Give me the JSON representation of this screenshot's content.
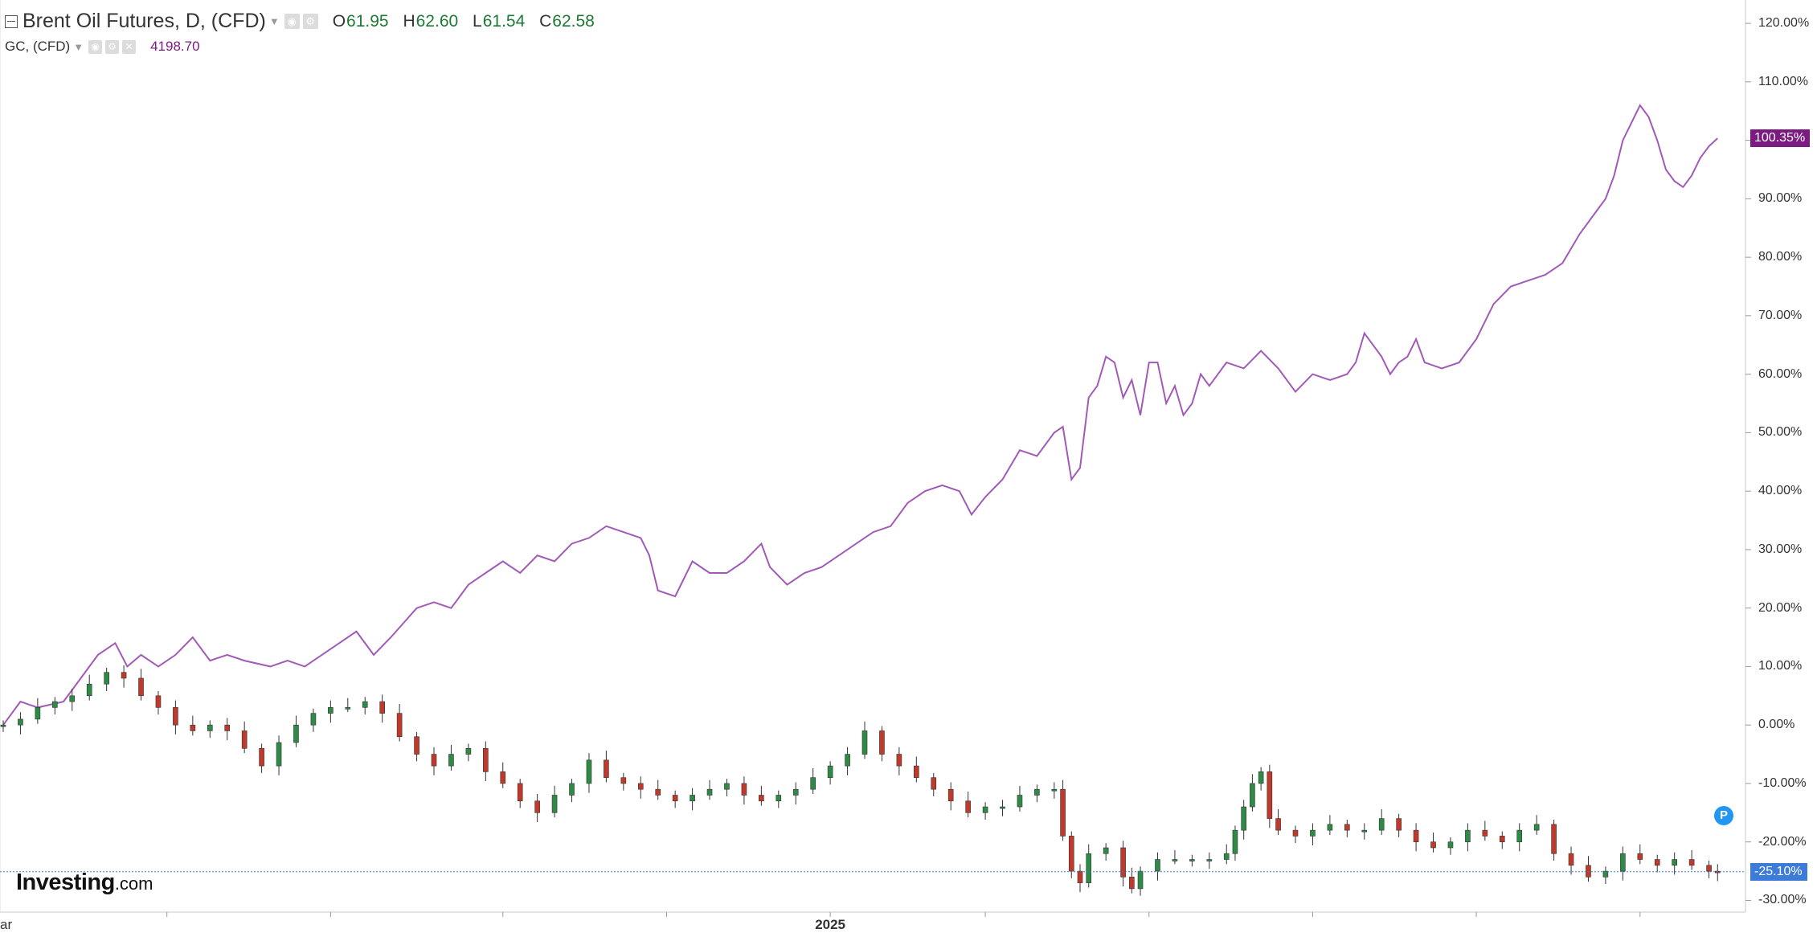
{
  "legend": {
    "main": {
      "title": "Brent Oil Futures, D, (CFD)",
      "ohlc": [
        {
          "label": "O",
          "value": "61.95"
        },
        {
          "label": "H",
          "value": "62.60"
        },
        {
          "label": "L",
          "value": "61.54"
        },
        {
          "label": "C",
          "value": "62.58"
        }
      ]
    },
    "secondary": {
      "title": "GC, (CFD)",
      "value": "4198.70"
    }
  },
  "branding": {
    "logo": "Investing",
    "logo_suffix": ".com"
  },
  "marker": {
    "label": "P"
  },
  "colors": {
    "gold_line": "#a15ab6",
    "gold_badge": "#7b1b82",
    "bull": "#2e8b45",
    "bear": "#c0392b",
    "last_price": "#3d7bd9",
    "marker": "#2196f3",
    "ohlc_value": "#1c7a33",
    "grid": "#e8e8e8"
  },
  "icons": [
    "collapse-icon",
    "caret-down-icon",
    "eye-icon",
    "gear-icon",
    "close-icon"
  ],
  "chart_data": {
    "type": "line",
    "title": "Brent Oil Futures, D, (CFD)",
    "y_axis": {
      "unit": "percent change",
      "ticks": [
        "120.00%",
        "110.00%",
        "100.00%",
        "90.00%",
        "80.00%",
        "70.00%",
        "60.00%",
        "50.00%",
        "40.00%",
        "30.00%",
        "20.00%",
        "10.00%",
        "0.00%",
        "-10.00%",
        "-20.00%",
        "-30.00%"
      ],
      "tick_values": [
        120,
        110,
        100,
        90,
        80,
        70,
        60,
        50,
        40,
        30,
        20,
        10,
        0,
        -10,
        -20,
        -30
      ],
      "range": [
        -32,
        124
      ]
    },
    "x_axis": {
      "labels": [
        {
          "text": "ar",
          "t": 0
        },
        {
          "text": "2025",
          "t": 0.48
        }
      ],
      "tick_marks": [
        0.095,
        0.19,
        0.29,
        0.385,
        0.48,
        0.57,
        0.665,
        0.76,
        0.855,
        0.95
      ],
      "range": [
        0,
        1
      ]
    },
    "series": [
      {
        "name": "GC, (CFD)",
        "style": "line",
        "last_label": "100.35%",
        "points": [
          [
            0.0,
            0
          ],
          [
            0.01,
            4
          ],
          [
            0.02,
            3
          ],
          [
            0.035,
            4
          ],
          [
            0.045,
            8
          ],
          [
            0.055,
            12
          ],
          [
            0.065,
            14
          ],
          [
            0.072,
            10
          ],
          [
            0.08,
            12
          ],
          [
            0.09,
            10
          ],
          [
            0.1,
            12
          ],
          [
            0.11,
            15
          ],
          [
            0.12,
            11
          ],
          [
            0.13,
            12
          ],
          [
            0.14,
            11
          ],
          [
            0.155,
            10
          ],
          [
            0.165,
            11
          ],
          [
            0.175,
            10
          ],
          [
            0.185,
            12
          ],
          [
            0.195,
            14
          ],
          [
            0.205,
            16
          ],
          [
            0.215,
            12
          ],
          [
            0.225,
            15
          ],
          [
            0.24,
            20
          ],
          [
            0.25,
            21
          ],
          [
            0.26,
            20
          ],
          [
            0.27,
            24
          ],
          [
            0.28,
            26
          ],
          [
            0.29,
            28
          ],
          [
            0.3,
            26
          ],
          [
            0.31,
            29
          ],
          [
            0.32,
            28
          ],
          [
            0.33,
            31
          ],
          [
            0.34,
            32
          ],
          [
            0.35,
            34
          ],
          [
            0.36,
            33
          ],
          [
            0.37,
            32
          ],
          [
            0.375,
            29
          ],
          [
            0.38,
            23
          ],
          [
            0.39,
            22
          ],
          [
            0.4,
            28
          ],
          [
            0.41,
            26
          ],
          [
            0.42,
            26
          ],
          [
            0.43,
            28
          ],
          [
            0.44,
            31
          ],
          [
            0.445,
            27
          ],
          [
            0.455,
            24
          ],
          [
            0.465,
            26
          ],
          [
            0.475,
            27
          ],
          [
            0.485,
            29
          ],
          [
            0.495,
            31
          ],
          [
            0.505,
            33
          ],
          [
            0.515,
            34
          ],
          [
            0.525,
            38
          ],
          [
            0.535,
            40
          ],
          [
            0.545,
            41
          ],
          [
            0.555,
            40
          ],
          [
            0.562,
            36
          ],
          [
            0.57,
            39
          ],
          [
            0.58,
            42
          ],
          [
            0.59,
            47
          ],
          [
            0.6,
            46
          ],
          [
            0.61,
            50
          ],
          [
            0.615,
            51
          ],
          [
            0.62,
            42
          ],
          [
            0.625,
            44
          ],
          [
            0.63,
            56
          ],
          [
            0.635,
            58
          ],
          [
            0.64,
            63
          ],
          [
            0.645,
            62
          ],
          [
            0.65,
            56
          ],
          [
            0.655,
            59
          ],
          [
            0.66,
            53
          ],
          [
            0.665,
            62
          ],
          [
            0.67,
            62
          ],
          [
            0.675,
            55
          ],
          [
            0.68,
            58
          ],
          [
            0.685,
            53
          ],
          [
            0.69,
            55
          ],
          [
            0.695,
            60
          ],
          [
            0.7,
            58
          ],
          [
            0.71,
            62
          ],
          [
            0.72,
            61
          ],
          [
            0.73,
            64
          ],
          [
            0.74,
            61
          ],
          [
            0.75,
            57
          ],
          [
            0.76,
            60
          ],
          [
            0.77,
            59
          ],
          [
            0.78,
            60
          ],
          [
            0.785,
            62
          ],
          [
            0.79,
            67
          ],
          [
            0.8,
            63
          ],
          [
            0.805,
            60
          ],
          [
            0.81,
            62
          ],
          [
            0.815,
            63
          ],
          [
            0.82,
            66
          ],
          [
            0.825,
            62
          ],
          [
            0.835,
            61
          ],
          [
            0.845,
            62
          ],
          [
            0.855,
            66
          ],
          [
            0.865,
            72
          ],
          [
            0.875,
            75
          ],
          [
            0.885,
            76
          ],
          [
            0.895,
            77
          ],
          [
            0.905,
            79
          ],
          [
            0.915,
            84
          ],
          [
            0.925,
            88
          ],
          [
            0.93,
            90
          ],
          [
            0.935,
            94
          ],
          [
            0.94,
            100
          ],
          [
            0.945,
            103
          ],
          [
            0.95,
            106
          ],
          [
            0.955,
            104
          ],
          [
            0.96,
            100
          ],
          [
            0.965,
            95
          ],
          [
            0.97,
            93
          ],
          [
            0.975,
            92
          ],
          [
            0.98,
            94
          ],
          [
            0.985,
            97
          ],
          [
            0.99,
            99
          ],
          [
            0.995,
            100.35
          ]
        ]
      },
      {
        "name": "Brent Oil Futures, D, (CFD)",
        "style": "candlestick",
        "last_label": "-25.10%",
        "points": [
          [
            0.0,
            0
          ],
          [
            0.01,
            1
          ],
          [
            0.02,
            3
          ],
          [
            0.03,
            4
          ],
          [
            0.04,
            5
          ],
          [
            0.05,
            7
          ],
          [
            0.06,
            9
          ],
          [
            0.07,
            8
          ],
          [
            0.08,
            5
          ],
          [
            0.09,
            3
          ],
          [
            0.1,
            0
          ],
          [
            0.11,
            -1
          ],
          [
            0.12,
            0
          ],
          [
            0.13,
            -1
          ],
          [
            0.14,
            -4
          ],
          [
            0.15,
            -7
          ],
          [
            0.16,
            -3
          ],
          [
            0.17,
            0
          ],
          [
            0.18,
            2
          ],
          [
            0.19,
            3
          ],
          [
            0.2,
            3
          ],
          [
            0.21,
            4
          ],
          [
            0.22,
            2
          ],
          [
            0.23,
            -2
          ],
          [
            0.24,
            -5
          ],
          [
            0.25,
            -7
          ],
          [
            0.26,
            -5
          ],
          [
            0.27,
            -4
          ],
          [
            0.28,
            -8
          ],
          [
            0.29,
            -10
          ],
          [
            0.3,
            -13
          ],
          [
            0.31,
            -15
          ],
          [
            0.32,
            -12
          ],
          [
            0.33,
            -10
          ],
          [
            0.34,
            -6
          ],
          [
            0.35,
            -9
          ],
          [
            0.36,
            -10
          ],
          [
            0.37,
            -11
          ],
          [
            0.38,
            -12
          ],
          [
            0.39,
            -13
          ],
          [
            0.4,
            -12
          ],
          [
            0.41,
            -11
          ],
          [
            0.42,
            -10
          ],
          [
            0.43,
            -12
          ],
          [
            0.44,
            -13
          ],
          [
            0.45,
            -12
          ],
          [
            0.46,
            -11
          ],
          [
            0.47,
            -9
          ],
          [
            0.48,
            -7
          ],
          [
            0.49,
            -5
          ],
          [
            0.5,
            -1
          ],
          [
            0.51,
            -5
          ],
          [
            0.52,
            -7
          ],
          [
            0.53,
            -9
          ],
          [
            0.54,
            -11
          ],
          [
            0.55,
            -13
          ],
          [
            0.56,
            -15
          ],
          [
            0.57,
            -14
          ],
          [
            0.58,
            -14
          ],
          [
            0.59,
            -12
          ],
          [
            0.6,
            -11
          ],
          [
            0.61,
            -11
          ],
          [
            0.615,
            -19
          ],
          [
            0.62,
            -25
          ],
          [
            0.625,
            -27
          ],
          [
            0.63,
            -22
          ],
          [
            0.64,
            -21
          ],
          [
            0.65,
            -26
          ],
          [
            0.655,
            -28
          ],
          [
            0.66,
            -25
          ],
          [
            0.67,
            -23
          ],
          [
            0.68,
            -23
          ],
          [
            0.69,
            -23
          ],
          [
            0.7,
            -23
          ],
          [
            0.71,
            -22
          ],
          [
            0.715,
            -18
          ],
          [
            0.72,
            -14
          ],
          [
            0.725,
            -10
          ],
          [
            0.73,
            -8
          ],
          [
            0.735,
            -16
          ],
          [
            0.74,
            -18
          ],
          [
            0.75,
            -19
          ],
          [
            0.76,
            -18
          ],
          [
            0.77,
            -17
          ],
          [
            0.78,
            -18
          ],
          [
            0.79,
            -18
          ],
          [
            0.8,
            -16
          ],
          [
            0.81,
            -18
          ],
          [
            0.82,
            -20
          ],
          [
            0.83,
            -21
          ],
          [
            0.84,
            -20
          ],
          [
            0.85,
            -18
          ],
          [
            0.86,
            -19
          ],
          [
            0.87,
            -20
          ],
          [
            0.88,
            -18
          ],
          [
            0.89,
            -17
          ],
          [
            0.9,
            -22
          ],
          [
            0.91,
            -24
          ],
          [
            0.92,
            -26
          ],
          [
            0.93,
            -25
          ],
          [
            0.94,
            -22
          ],
          [
            0.95,
            -23
          ],
          [
            0.96,
            -24
          ],
          [
            0.97,
            -23
          ],
          [
            0.98,
            -24
          ],
          [
            0.99,
            -25
          ],
          [
            0.995,
            -25.1
          ]
        ]
      }
    ],
    "grid": false,
    "legend_position": "top-left"
  }
}
